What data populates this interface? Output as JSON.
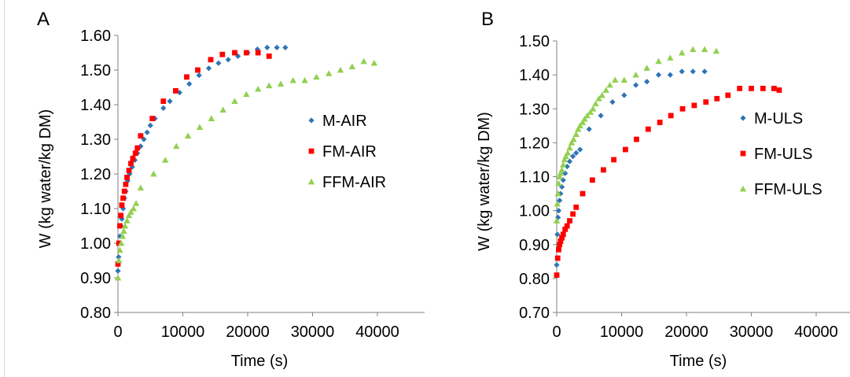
{
  "chart_data": [
    {
      "type": "scatter",
      "panel_label": "A",
      "xlabel": "Time (s)",
      "ylabel": "W (kg water/kg DM)",
      "xlim": [
        0,
        40000
      ],
      "ylim": [
        0.8,
        1.6
      ],
      "xticks": [
        "0",
        "10000",
        "20000",
        "30000",
        "40000"
      ],
      "yticks": [
        "0.80",
        "0.90",
        "1.00",
        "1.10",
        "1.20",
        "1.30",
        "1.40",
        "1.50",
        "1.60"
      ],
      "grid": false,
      "legend": "right",
      "series": [
        {
          "name": "M-AIR",
          "marker": "diamond",
          "color": "#2e75b6",
          "points": [
            [
              0,
              0.92
            ],
            [
              100,
              0.96
            ],
            [
              200,
              1.0
            ],
            [
              300,
              1.02
            ],
            [
              450,
              1.05
            ],
            [
              600,
              1.07
            ],
            [
              800,
              1.1
            ],
            [
              1000,
              1.13
            ],
            [
              1200,
              1.15
            ],
            [
              1500,
              1.18
            ],
            [
              1800,
              1.2
            ],
            [
              2200,
              1.22
            ],
            [
              2600,
              1.24
            ],
            [
              3000,
              1.26
            ],
            [
              3500,
              1.28
            ],
            [
              4000,
              1.3
            ],
            [
              4500,
              1.32
            ],
            [
              5000,
              1.34
            ],
            [
              5700,
              1.36
            ],
            [
              7000,
              1.39
            ],
            [
              8000,
              1.41
            ],
            [
              9500,
              1.435
            ],
            [
              11000,
              1.46
            ],
            [
              12500,
              1.485
            ],
            [
              14000,
              1.505
            ],
            [
              15500,
              1.52
            ],
            [
              17000,
              1.53
            ],
            [
              18500,
              1.54
            ],
            [
              20000,
              1.55
            ],
            [
              21500,
              1.56
            ],
            [
              23000,
              1.565
            ],
            [
              24500,
              1.565
            ],
            [
              25800,
              1.565
            ]
          ]
        },
        {
          "name": "FM-AIR",
          "marker": "square",
          "color": "#ff0000",
          "points": [
            [
              0,
              0.94
            ],
            [
              150,
              1.0
            ],
            [
              300,
              1.05
            ],
            [
              450,
              1.08
            ],
            [
              600,
              1.11
            ],
            [
              800,
              1.13
            ],
            [
              1000,
              1.15
            ],
            [
              1200,
              1.17
            ],
            [
              1400,
              1.19
            ],
            [
              1700,
              1.21
            ],
            [
              2000,
              1.23
            ],
            [
              2300,
              1.245
            ],
            [
              2700,
              1.26
            ],
            [
              3000,
              1.275
            ],
            [
              3500,
              1.31
            ],
            [
              5300,
              1.36
            ],
            [
              7000,
              1.41
            ],
            [
              8900,
              1.44
            ],
            [
              10600,
              1.48
            ],
            [
              12300,
              1.5
            ],
            [
              14300,
              1.53
            ],
            [
              16100,
              1.545
            ],
            [
              18000,
              1.55
            ],
            [
              19800,
              1.55
            ],
            [
              21600,
              1.55
            ],
            [
              23300,
              1.54
            ]
          ]
        },
        {
          "name": "FFM-AIR",
          "marker": "triangle",
          "color": "#92d050",
          "points": [
            [
              0,
              0.9
            ],
            [
              150,
              0.95
            ],
            [
              300,
              0.98
            ],
            [
              500,
              1.0
            ],
            [
              700,
              1.02
            ],
            [
              900,
              1.035
            ],
            [
              1100,
              1.05
            ],
            [
              1400,
              1.065
            ],
            [
              1700,
              1.08
            ],
            [
              2000,
              1.09
            ],
            [
              2400,
              1.1
            ],
            [
              2800,
              1.115
            ],
            [
              3500,
              1.16
            ],
            [
              5500,
              1.2
            ],
            [
              7300,
              1.24
            ],
            [
              9000,
              1.28
            ],
            [
              10800,
              1.31
            ],
            [
              12600,
              1.335
            ],
            [
              14400,
              1.36
            ],
            [
              16200,
              1.385
            ],
            [
              18000,
              1.41
            ],
            [
              19800,
              1.43
            ],
            [
              21600,
              1.445
            ],
            [
              23300,
              1.455
            ],
            [
              25100,
              1.46
            ],
            [
              27000,
              1.47
            ],
            [
              28800,
              1.47
            ],
            [
              30600,
              1.48
            ],
            [
              32500,
              1.49
            ],
            [
              34300,
              1.5
            ],
            [
              36100,
              1.51
            ],
            [
              37900,
              1.525
            ],
            [
              39500,
              1.52
            ]
          ]
        }
      ]
    },
    {
      "type": "scatter",
      "panel_label": "B",
      "xlabel": "Time (s)",
      "ylabel": "W (kg water/kg DM)",
      "xlim": [
        0,
        40000
      ],
      "ylim": [
        0.7,
        1.5
      ],
      "xticks": [
        "0",
        "10000",
        "20000",
        "30000",
        "40000"
      ],
      "yticks": [
        "0.70",
        "0.80",
        "0.90",
        "1.00",
        "1.10",
        "1.20",
        "1.30",
        "1.40",
        "1.50"
      ],
      "grid": false,
      "legend": "right",
      "series": [
        {
          "name": "M-ULS",
          "marker": "diamond",
          "color": "#2e75b6",
          "points": [
            [
              0,
              0.84
            ],
            [
              100,
              0.93
            ],
            [
              200,
              0.98
            ],
            [
              300,
              1.0
            ],
            [
              450,
              1.03
            ],
            [
              600,
              1.05
            ],
            [
              800,
              1.07
            ],
            [
              1000,
              1.09
            ],
            [
              1300,
              1.11
            ],
            [
              1600,
              1.13
            ],
            [
              2000,
              1.145
            ],
            [
              2500,
              1.16
            ],
            [
              3000,
              1.17
            ],
            [
              3600,
              1.18
            ],
            [
              5000,
              1.24
            ],
            [
              6800,
              1.28
            ],
            [
              8600,
              1.32
            ],
            [
              10400,
              1.34
            ],
            [
              12200,
              1.37
            ],
            [
              13900,
              1.38
            ],
            [
              15700,
              1.4
            ],
            [
              17500,
              1.4
            ],
            [
              19300,
              1.41
            ],
            [
              21000,
              1.41
            ],
            [
              22800,
              1.41
            ]
          ]
        },
        {
          "name": "FM-ULS",
          "marker": "square",
          "color": "#ff0000",
          "points": [
            [
              0,
              0.81
            ],
            [
              150,
              0.86
            ],
            [
              300,
              0.885
            ],
            [
              450,
              0.9
            ],
            [
              600,
              0.91
            ],
            [
              800,
              0.92
            ],
            [
              1000,
              0.93
            ],
            [
              1300,
              0.945
            ],
            [
              1600,
              0.955
            ],
            [
              2000,
              0.97
            ],
            [
              2500,
              0.99
            ],
            [
              3000,
              1.01
            ],
            [
              4000,
              1.05
            ],
            [
              5500,
              1.09
            ],
            [
              7200,
              1.12
            ],
            [
              8800,
              1.15
            ],
            [
              10600,
              1.18
            ],
            [
              12300,
              1.21
            ],
            [
              14100,
              1.24
            ],
            [
              15900,
              1.26
            ],
            [
              17600,
              1.28
            ],
            [
              19400,
              1.3
            ],
            [
              21200,
              1.31
            ],
            [
              23000,
              1.32
            ],
            [
              24700,
              1.33
            ],
            [
              26400,
              1.34
            ],
            [
              28200,
              1.36
            ],
            [
              30000,
              1.36
            ],
            [
              31800,
              1.36
            ],
            [
              33500,
              1.36
            ],
            [
              34300,
              1.355
            ]
          ]
        },
        {
          "name": "FFM-ULS",
          "marker": "triangle",
          "color": "#92d050",
          "points": [
            [
              0,
              0.97
            ],
            [
              100,
              1.02
            ],
            [
              200,
              1.05
            ],
            [
              300,
              1.08
            ],
            [
              450,
              1.1
            ],
            [
              600,
              1.11
            ],
            [
              800,
              1.12
            ],
            [
              1000,
              1.135
            ],
            [
              1200,
              1.15
            ],
            [
              1400,
              1.16
            ],
            [
              1700,
              1.17
            ],
            [
              2000,
              1.185
            ],
            [
              2300,
              1.2
            ],
            [
              2600,
              1.21
            ],
            [
              3000,
              1.225
            ],
            [
              3300,
              1.24
            ],
            [
              3600,
              1.25
            ],
            [
              4000,
              1.26
            ],
            [
              4300,
              1.27
            ],
            [
              4700,
              1.28
            ],
            [
              5200,
              1.29
            ],
            [
              5600,
              1.3
            ],
            [
              6000,
              1.315
            ],
            [
              6500,
              1.33
            ],
            [
              7000,
              1.34
            ],
            [
              7600,
              1.355
            ],
            [
              8200,
              1.37
            ],
            [
              9000,
              1.385
            ],
            [
              10400,
              1.385
            ],
            [
              12200,
              1.4
            ],
            [
              13900,
              1.42
            ],
            [
              15700,
              1.44
            ],
            [
              17500,
              1.45
            ],
            [
              19300,
              1.465
            ],
            [
              21000,
              1.475
            ],
            [
              22800,
              1.475
            ],
            [
              24600,
              1.47
            ]
          ]
        }
      ]
    }
  ]
}
